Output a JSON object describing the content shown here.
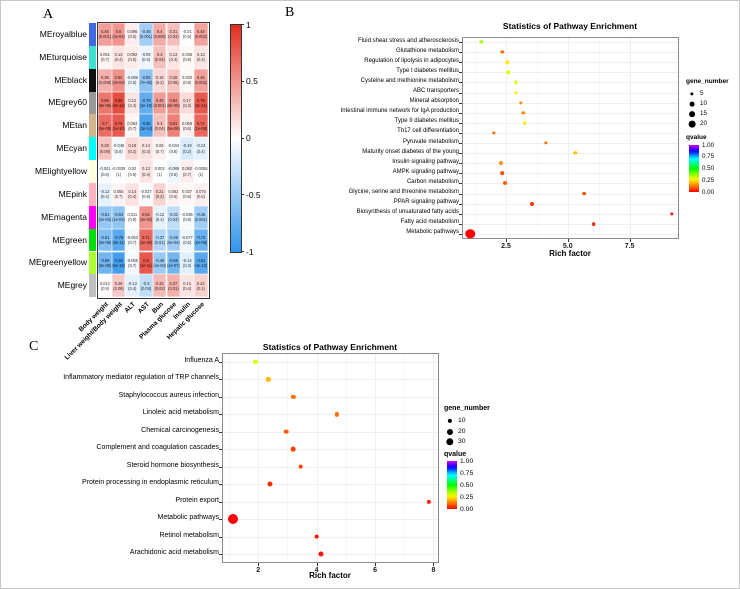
{
  "figure": {
    "panel_a_label": "A",
    "panel_b_label": "B",
    "panel_c_label": "C"
  },
  "chart_data": [
    {
      "id": "module_trait_heatmap",
      "panel": "A",
      "type": "heatmap",
      "columns": [
        "Body weight",
        "Liver weight/Body weight",
        "ALT",
        "AST",
        "Bun",
        "Plasma glucose",
        "Insulin",
        "Hepatic glucose"
      ],
      "rows": [
        {
          "module": "MEroyalblue",
          "color": "#4169E1",
          "cells": [
            [
              "0.46",
              "(0.001)",
              0.46
            ],
            [
              "0.5",
              "(3e-04)",
              0.5
            ],
            [
              "0.086",
              "(0.6)",
              0.086
            ],
            [
              "-0.45",
              "(0.001)",
              -0.45
            ],
            [
              "0.4",
              "(0.005)",
              0.4
            ],
            [
              "0.31",
              "(0.03)",
              0.31
            ],
            [
              "-0.01",
              "(0.9)",
              -0.01
            ],
            [
              "0.44",
              "(0.002)",
              0.44
            ]
          ]
        },
        {
          "module": "MEturquoise",
          "color": "#40E0D0",
          "cells": [
            [
              "0.051",
              "(0.7)",
              0.051
            ],
            [
              "0.13",
              "(0.4)",
              0.13
            ],
            [
              "0.092",
              "(0.5)",
              0.092
            ],
            [
              "-0.08",
              "(0.6)",
              -0.08
            ],
            [
              "0.3",
              "(0.04)",
              0.3
            ],
            [
              "0.13",
              "(0.4)",
              0.13
            ],
            [
              "0.036",
              "(0.8)",
              0.036
            ],
            [
              "0.13",
              "(0.4)",
              0.13
            ]
          ]
        },
        {
          "module": "MEblack",
          "color": "#111111",
          "cells": [
            [
              "0.38",
              "(0.009)",
              0.38
            ],
            [
              "0.52",
              "(2e-04)",
              0.52
            ],
            [
              "-0.086",
              "(0.6)",
              -0.086
            ],
            [
              "-0.55",
              "(7e-05)",
              -0.55
            ],
            [
              "0.18",
              "(0.2)",
              0.18
            ],
            [
              "0.28",
              "(0.05)",
              0.28
            ],
            [
              "0.033",
              "(0.8)",
              0.033
            ],
            [
              "0.45",
              "(0.002)",
              0.45
            ]
          ]
        },
        {
          "module": "MEgrey60",
          "color": "#999999",
          "cells": [
            [
              "0.65",
              "(6e-06)",
              0.65
            ],
            [
              "0.85",
              "(8e-15)",
              0.85
            ],
            [
              "0.12",
              "(0.4)",
              0.12
            ],
            [
              "-0.76",
              "(2e-10)",
              -0.76
            ],
            [
              "0.46",
              "(0.001)",
              0.46
            ],
            [
              "0.54",
              "(8e-05)",
              0.54
            ],
            [
              "0.17",
              "(0.3)",
              0.17
            ],
            [
              "0.79",
              "(3e-11)",
              0.79
            ]
          ]
        },
        {
          "module": "MEtan",
          "color": "#D2B48C",
          "cells": [
            [
              "0.7",
              "(5e-08)",
              0.7
            ],
            [
              "0.79",
              "(1e-10)",
              0.79
            ],
            [
              "0.054",
              "(0.7)",
              0.054
            ],
            [
              "-0.86",
              "(1e-14)",
              -0.86
            ],
            [
              "0.3",
              "(0.04)",
              0.3
            ],
            [
              "0.61",
              "(5e-06)",
              0.61
            ],
            [
              "0.069",
              "(0.6)",
              0.069
            ],
            [
              "0.72",
              "(1e-08)",
              0.72
            ]
          ]
        },
        {
          "module": "MEcyan",
          "color": "#00FFFF",
          "cells": [
            [
              "0.28",
              "(0.09)",
              0.28
            ],
            [
              "-0.046",
              "(0.8)",
              -0.046
            ],
            [
              "0.18",
              "(0.2)",
              0.18
            ],
            [
              "0.14",
              "(0.3)",
              0.14
            ],
            [
              "0.06",
              "(0.7)",
              0.06
            ],
            [
              "-0.034",
              "(0.8)",
              -0.034
            ],
            [
              "-0.19",
              "(0.2)",
              -0.19
            ],
            [
              "-0.13",
              "(0.4)",
              -0.13
            ]
          ]
        },
        {
          "module": "MElightyellow",
          "color": "#FFFFE0",
          "cells": [
            [
              "-0.041",
              "(0.8)",
              -0.041
            ],
            [
              "-0.0039",
              "(1)",
              -0.0039
            ],
            [
              "0.02",
              "(0.9)",
              0.02
            ],
            [
              "0.13",
              "(0.4)",
              0.13
            ],
            [
              "0.002",
              "(1)",
              0.002
            ],
            [
              "-0.089",
              "(0.6)",
              -0.089
            ],
            [
              "0.082",
              "(0.7)",
              0.082
            ],
            [
              "-0.0056",
              "(1)",
              -0.0056
            ]
          ]
        },
        {
          "module": "MEpink",
          "color": "#FFB6C1",
          "cells": [
            [
              "-0.12",
              "(0.4)",
              -0.12
            ],
            [
              "0.056",
              "(0.7)",
              0.056
            ],
            [
              "0.14",
              "(0.4)",
              0.14
            ],
            [
              "-0.027",
              "(0.9)",
              -0.027
            ],
            [
              "0.21",
              "(0.2)",
              0.21
            ],
            [
              "0.062",
              "(0.5)",
              0.062
            ],
            [
              "0.037",
              "(0.8)",
              0.037
            ],
            [
              "0.075",
              "(0.6)",
              0.075
            ]
          ]
        },
        {
          "module": "MEmagenta",
          "color": "#FF00FF",
          "cells": [
            [
              "-0.51",
              "(2e-04)",
              -0.51
            ],
            [
              "-0.53",
              "(1e-04)",
              -0.53
            ],
            [
              "0.011",
              "(0.9)",
              0.011
            ],
            [
              "0.51",
              "(2e-04)",
              0.51
            ],
            [
              "-0.12",
              "(0.4)",
              -0.12
            ],
            [
              "-0.32",
              "(0.03)",
              -0.32
            ],
            [
              "-0.036",
              "(0.8)",
              -0.036
            ],
            [
              "-0.46",
              "(0.001)",
              -0.46
            ]
          ]
        },
        {
          "module": "MEgreen",
          "color": "#00E000",
          "cells": [
            [
              "-0.61",
              "(6e-06)",
              -0.61
            ],
            [
              "-0.79",
              "(8e-11)",
              -0.79
            ],
            [
              "-0.053",
              "(0.7)",
              -0.053
            ],
            [
              "0.71",
              "(2e-08)",
              0.71
            ],
            [
              "-0.37",
              "(0.01)",
              -0.37
            ],
            [
              "-0.48",
              "(6e-04)",
              -0.48
            ],
            [
              "-0.077",
              "(0.6)",
              -0.077
            ],
            [
              "-0.72",
              "(2e-08)",
              -0.72
            ]
          ]
        },
        {
          "module": "MEgreenyellow",
          "color": "#ADFF2F",
          "cells": [
            [
              "-0.69",
              "(5e-08)",
              -0.69
            ],
            [
              "-0.91",
              "(5e-19)",
              -0.91
            ],
            [
              "-0.056",
              "(0.7)",
              -0.056
            ],
            [
              "0.8",
              "(1e-11)",
              0.8
            ],
            [
              "-0.49",
              "(4e-04)",
              -0.49
            ],
            [
              "-0.68",
              "(1e-07)",
              -0.68
            ],
            [
              "-0.14",
              "(0.3)",
              -0.14
            ],
            [
              "-0.81",
              "(4e-12)",
              -0.81
            ]
          ]
        },
        {
          "module": "MEgrey",
          "color": "#C0C0C0",
          "cells": [
            [
              "0.012",
              "(0.9)",
              0.012
            ],
            [
              "0.26",
              "(0.08)",
              0.26
            ],
            [
              "-0.13",
              "(0.4)",
              -0.13
            ],
            [
              "-0.3",
              "(0.04)",
              -0.3
            ],
            [
              "0.33",
              "(0.02)",
              0.33
            ],
            [
              "0.37",
              "(0.01)",
              0.37
            ],
            [
              "0.13",
              "(0.4)",
              0.13
            ],
            [
              "0.22",
              "(0.1)",
              0.22
            ]
          ]
        }
      ],
      "colorbar": {
        "tick_labels": [
          "1",
          "0.5",
          "0",
          "-0.5",
          "-1"
        ],
        "tick_values": [
          1,
          0.5,
          0,
          -0.5,
          -1
        ],
        "positive_color": "#E22D1F",
        "negative_color": "#3094EB",
        "zero_color": "#FFFFFF"
      }
    },
    {
      "id": "pathway_enrichment_top",
      "panel": "B",
      "type": "scatter",
      "title": "Statistics of Pathway Enrichment",
      "xlabel": "Rich factor",
      "xlim": [
        0.72,
        9.5
      ],
      "x_tick_values": [
        2.5,
        5.0,
        7.5
      ],
      "x_tick_labels": [
        "2.5",
        "5.0",
        "7.5"
      ],
      "grid": true,
      "legend": {
        "size_title": "gene_number",
        "sizes": [
          5,
          10,
          15,
          20
        ],
        "color_title": "qvalue",
        "color_tick_labels": [
          "1.00",
          "0.75",
          "0.50",
          "0.25",
          "0.00"
        ]
      },
      "points": [
        {
          "pathway": "Fluid shear stress and atherosclerosis",
          "rich_factor": 1.5,
          "qvalue": 0.35,
          "gene_number": 5
        },
        {
          "pathway": "Glutathione metabolism",
          "rich_factor": 2.35,
          "qvalue": 0.12,
          "gene_number": 5
        },
        {
          "pathway": "Regulation of lipolysis in adipocytes",
          "rich_factor": 2.55,
          "qvalue": 0.25,
          "gene_number": 5
        },
        {
          "pathway": "Type I diabetes mellitus",
          "rich_factor": 2.6,
          "qvalue": 0.3,
          "gene_number": 5
        },
        {
          "pathway": "Cysteine and methionine metabolism",
          "rich_factor": 2.9,
          "qvalue": 0.3,
          "gene_number": 5
        },
        {
          "pathway": "ABC transporters",
          "rich_factor": 2.9,
          "qvalue": 0.25,
          "gene_number": 5
        },
        {
          "pathway": "Mineral absorption",
          "rich_factor": 3.1,
          "qvalue": 0.15,
          "gene_number": 5
        },
        {
          "pathway": "Intestinal immune network for IgA production",
          "rich_factor": 3.2,
          "qvalue": 0.15,
          "gene_number": 5
        },
        {
          "pathway": "Type II diabetes mellitus",
          "rich_factor": 3.25,
          "qvalue": 0.25,
          "gene_number": 6
        },
        {
          "pathway": "Th17 cell differentiation",
          "rich_factor": 2.0,
          "qvalue": 0.12,
          "gene_number": 5
        },
        {
          "pathway": "Pyruvate metabolism",
          "rich_factor": 4.1,
          "qvalue": 0.12,
          "gene_number": 5
        },
        {
          "pathway": "Maturity onset diabetes of the young",
          "rich_factor": 5.3,
          "qvalue": 0.2,
          "gene_number": 5
        },
        {
          "pathway": "Insulin signaling pathway",
          "rich_factor": 2.3,
          "qvalue": 0.15,
          "gene_number": 7
        },
        {
          "pathway": "AMPK signaling pathway",
          "rich_factor": 2.35,
          "qvalue": 0.08,
          "gene_number": 6
        },
        {
          "pathway": "Carbon metabolism",
          "rich_factor": 2.45,
          "qvalue": 0.1,
          "gene_number": 7
        },
        {
          "pathway": "Glycine, serine and threonine metabolism",
          "rich_factor": 5.65,
          "qvalue": 0.08,
          "gene_number": 6
        },
        {
          "pathway": "PPAR signaling pathway",
          "rich_factor": 3.55,
          "qvalue": 0.05,
          "gene_number": 7
        },
        {
          "pathway": "Biosynthesis of unsaturated fatty acids",
          "rich_factor": 9.2,
          "qvalue": 0.03,
          "gene_number": 5
        },
        {
          "pathway": "Fatty acid metabolism",
          "rich_factor": 6.05,
          "qvalue": 0.03,
          "gene_number": 6
        },
        {
          "pathway": "Metabolic pathways",
          "rich_factor": 1.05,
          "qvalue": 0.001,
          "gene_number": 40
        }
      ]
    },
    {
      "id": "pathway_enrichment_bottom",
      "panel": "C",
      "type": "scatter",
      "title": "Statistics of Pathway Enrichment",
      "xlabel": "Rich factor",
      "xlim": [
        0.76,
        8.19
      ],
      "x_tick_values": [
        2,
        4,
        6,
        8
      ],
      "x_tick_labels": [
        "2",
        "4",
        "6",
        "8"
      ],
      "grid": true,
      "legend": {
        "size_title": "gene_number",
        "sizes": [
          10,
          20,
          30
        ],
        "color_title": "qvalue",
        "color_tick_labels": [
          "1.00",
          "0.75",
          "0.50",
          "0.25",
          "0.00"
        ]
      },
      "points": [
        {
          "pathway": "Influenza A",
          "rich_factor": 1.9,
          "qvalue": 0.3,
          "gene_number": 10
        },
        {
          "pathway": "Inflammatory mediator regulation of TRP channels",
          "rich_factor": 2.35,
          "qvalue": 0.2,
          "gene_number": 10
        },
        {
          "pathway": "Staphylococcus aureus infection",
          "rich_factor": 3.2,
          "qvalue": 0.12,
          "gene_number": 10
        },
        {
          "pathway": "Linoleic acid metabolism",
          "rich_factor": 4.7,
          "qvalue": 0.12,
          "gene_number": 10
        },
        {
          "pathway": "Chemical carcinogenesis",
          "rich_factor": 2.95,
          "qvalue": 0.1,
          "gene_number": 12
        },
        {
          "pathway": "Complement and coagulation cascades",
          "rich_factor": 3.2,
          "qvalue": 0.07,
          "gene_number": 12
        },
        {
          "pathway": "Steroid hormone biosynthesis",
          "rich_factor": 3.45,
          "qvalue": 0.07,
          "gene_number": 12
        },
        {
          "pathway": "Protein processing in endoplasmic reticulum",
          "rich_factor": 2.4,
          "qvalue": 0.05,
          "gene_number": 14
        },
        {
          "pathway": "Protein export",
          "rich_factor": 7.85,
          "qvalue": 0.03,
          "gene_number": 10
        },
        {
          "pathway": "Metabolic pathways",
          "rich_factor": 1.15,
          "qvalue": 0.001,
          "gene_number": 55
        },
        {
          "pathway": "Retinol metabolism",
          "rich_factor": 4.0,
          "qvalue": 0.02,
          "gene_number": 12
        },
        {
          "pathway": "Arachidonic acid metabolism",
          "rich_factor": 4.15,
          "qvalue": 0.02,
          "gene_number": 14
        }
      ]
    }
  ]
}
